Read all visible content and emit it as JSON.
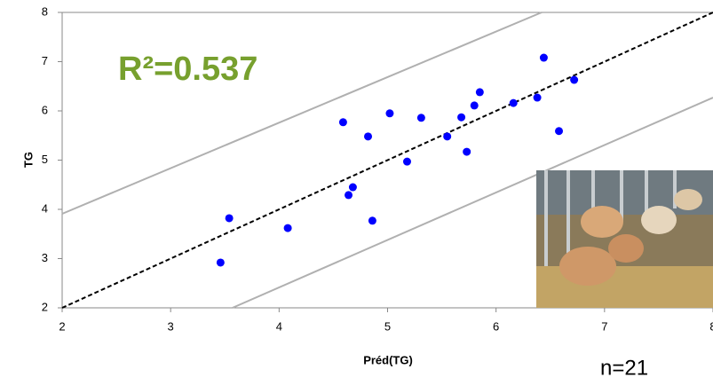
{
  "chart_data": {
    "type": "scatter",
    "annotation": "R²=0.537",
    "note": "n=21",
    "x_label": "Préd(TG)",
    "y_label": "TG",
    "xlim": [
      2,
      8
    ],
    "ylim": [
      2,
      8
    ],
    "xticks": [
      2,
      3,
      4,
      5,
      6,
      7,
      8
    ],
    "yticks": [
      2,
      3,
      4,
      5,
      6,
      7,
      8
    ],
    "color": "#0000ff",
    "x": [
      3.46,
      3.54,
      4.08,
      4.59,
      4.64,
      4.68,
      4.82,
      4.86,
      5.02,
      5.18,
      5.31,
      5.55,
      5.68,
      5.73,
      5.8,
      5.85,
      6.16,
      6.38,
      6.44,
      6.58,
      6.72
    ],
    "values": [
      2.92,
      3.82,
      3.62,
      5.77,
      4.29,
      4.45,
      5.48,
      3.77,
      5.95,
      4.97,
      5.86,
      5.48,
      5.87,
      5.17,
      6.11,
      6.38,
      6.16,
      6.27,
      7.08,
      5.59,
      6.63
    ],
    "lines": [
      {
        "x": [
          2,
          8
        ],
        "y": [
          2,
          8
        ],
        "color": "#000000",
        "dashed": true
      },
      {
        "x": [
          2,
          6.42
        ],
        "y": [
          3.91,
          8
        ],
        "color": "#b0b0b0",
        "dashed": false
      },
      {
        "x": [
          3.57,
          8
        ],
        "y": [
          2,
          6.27
        ],
        "color": "#b0b0b0",
        "dashed": false
      }
    ]
  }
}
